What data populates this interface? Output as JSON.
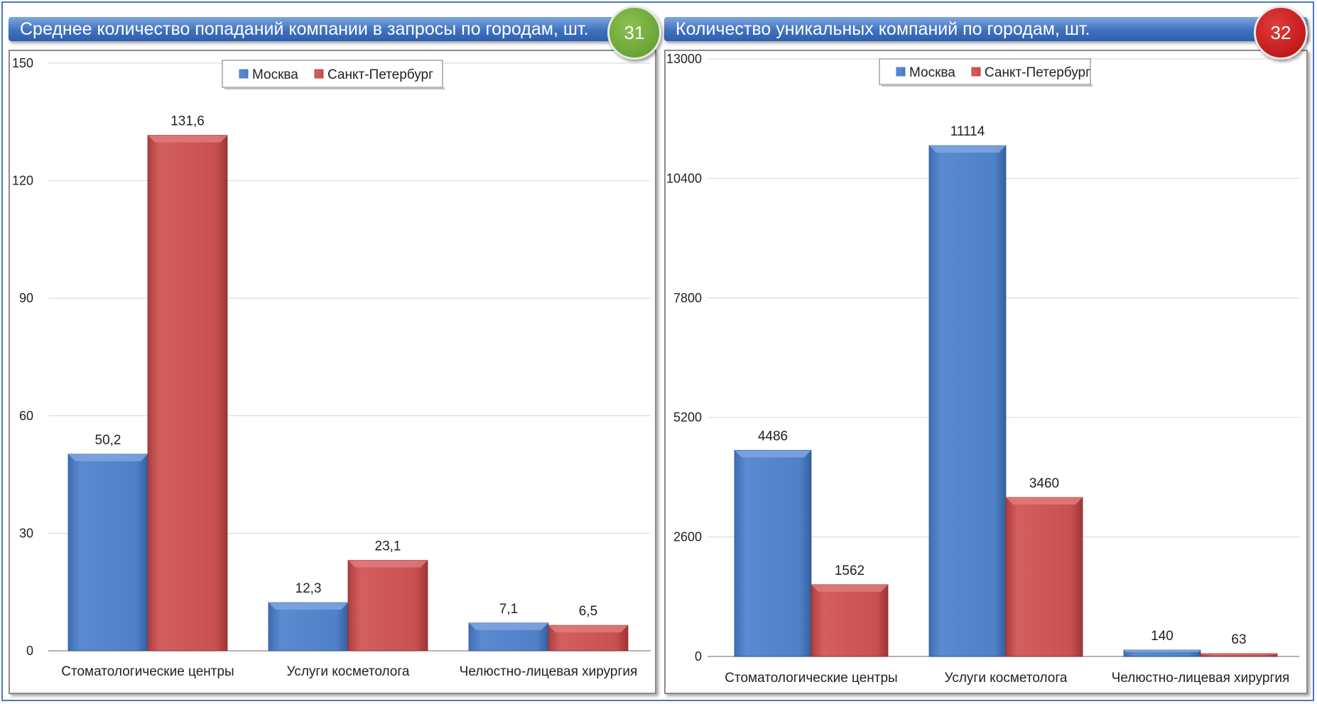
{
  "chart_data": [
    {
      "type": "bar",
      "title": "Среднее количество попаданий компании в запросы по городам, шт.",
      "badge": "31",
      "badge_color": "#6aa636",
      "categories": [
        "Стоматологические центры",
        "Услуги косметолога",
        "Челюстно-лицевая хирургия"
      ],
      "series": [
        {
          "name": "Москва",
          "values": [
            50.2,
            12.3,
            7.1
          ],
          "labels": [
            "50,2",
            "12,3",
            "7,1"
          ],
          "color": "#4f81c8"
        },
        {
          "name": "Санкт-Петербург",
          "values": [
            131.6,
            23.1,
            6.5
          ],
          "labels": [
            "131,6",
            "23,1",
            "6,5"
          ],
          "color": "#c85050"
        }
      ],
      "yticks": [
        "0",
        "30",
        "60",
        "90",
        "120",
        "150"
      ],
      "ylim": [
        0,
        150
      ],
      "legend": "top-center"
    },
    {
      "type": "bar",
      "title": "Количество уникальных компаний по городам, шт.",
      "badge": "32",
      "badge_color": "#c41111",
      "categories": [
        "Стоматологические центры",
        "Услуги косметолога",
        "Челюстно-лицевая хирургия"
      ],
      "series": [
        {
          "name": "Москва",
          "values": [
            4486,
            11114,
            140
          ],
          "labels": [
            "4486",
            "11114",
            "140"
          ],
          "color": "#4f81c8"
        },
        {
          "name": "Санкт-Петербург",
          "values": [
            1562,
            3460,
            63
          ],
          "labels": [
            "1562",
            "3460",
            "63"
          ],
          "color": "#c85050"
        }
      ],
      "yticks": [
        "0",
        "2600",
        "5200",
        "7800",
        "10400",
        "13000"
      ],
      "ylim": [
        0,
        13000
      ],
      "legend": "top-center"
    }
  ]
}
